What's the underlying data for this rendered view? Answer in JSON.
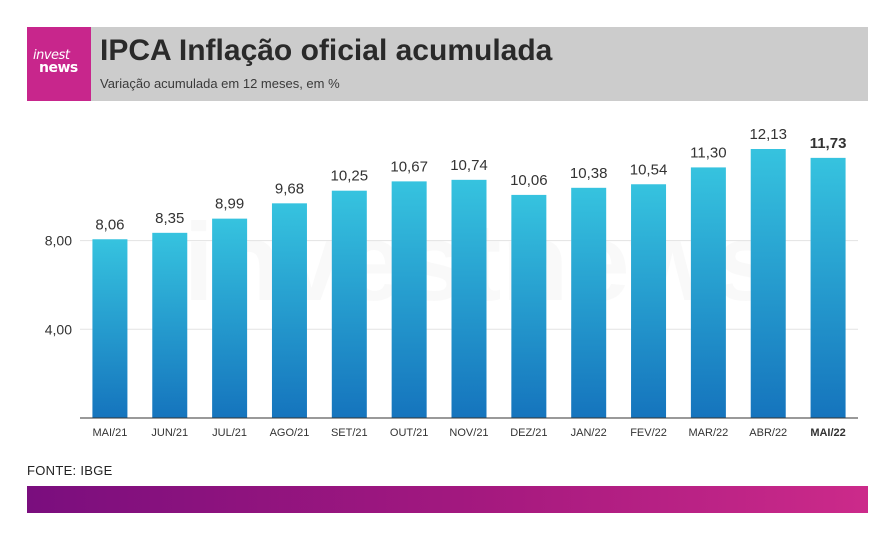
{
  "header": {
    "logo_line1": "invest",
    "logo_line2": "news",
    "title": "IPCA Inflação oficial acumulada",
    "subtitle": "Variação acumulada em 12 meses, em %"
  },
  "source": "FONTE: IBGE",
  "watermark": "investnews",
  "colors": {
    "logo_bg": "#c8268c",
    "header_bg": "#cccccc",
    "bar_top": "#36c3df",
    "bar_bottom": "#1574bd",
    "footer_start": "#7a0e7e",
    "footer_end": "#cc2a8a"
  },
  "chart_data": {
    "type": "bar",
    "categories": [
      "MAI/21",
      "JUN/21",
      "JUL/21",
      "AGO/21",
      "SET/21",
      "OUT/21",
      "NOV/21",
      "DEZ/21",
      "JAN/22",
      "FEV/22",
      "MAR/22",
      "ABR/22",
      "MAI/22"
    ],
    "values": [
      8.06,
      8.35,
      8.99,
      9.68,
      10.25,
      10.67,
      10.74,
      10.06,
      10.38,
      10.54,
      11.3,
      12.13,
      11.73
    ],
    "value_labels": [
      "8,06",
      "8,35",
      "8,99",
      "9,68",
      "10,25",
      "10,67",
      "10,74",
      "10,06",
      "10,38",
      "10,54",
      "11,30",
      "12,13",
      "11,73"
    ],
    "highlight_index": 12,
    "yticks": [
      4,
      8
    ],
    "ytick_labels": [
      "4,00",
      "8,00"
    ],
    "ylim": [
      0,
      12.13
    ],
    "grid": true
  }
}
